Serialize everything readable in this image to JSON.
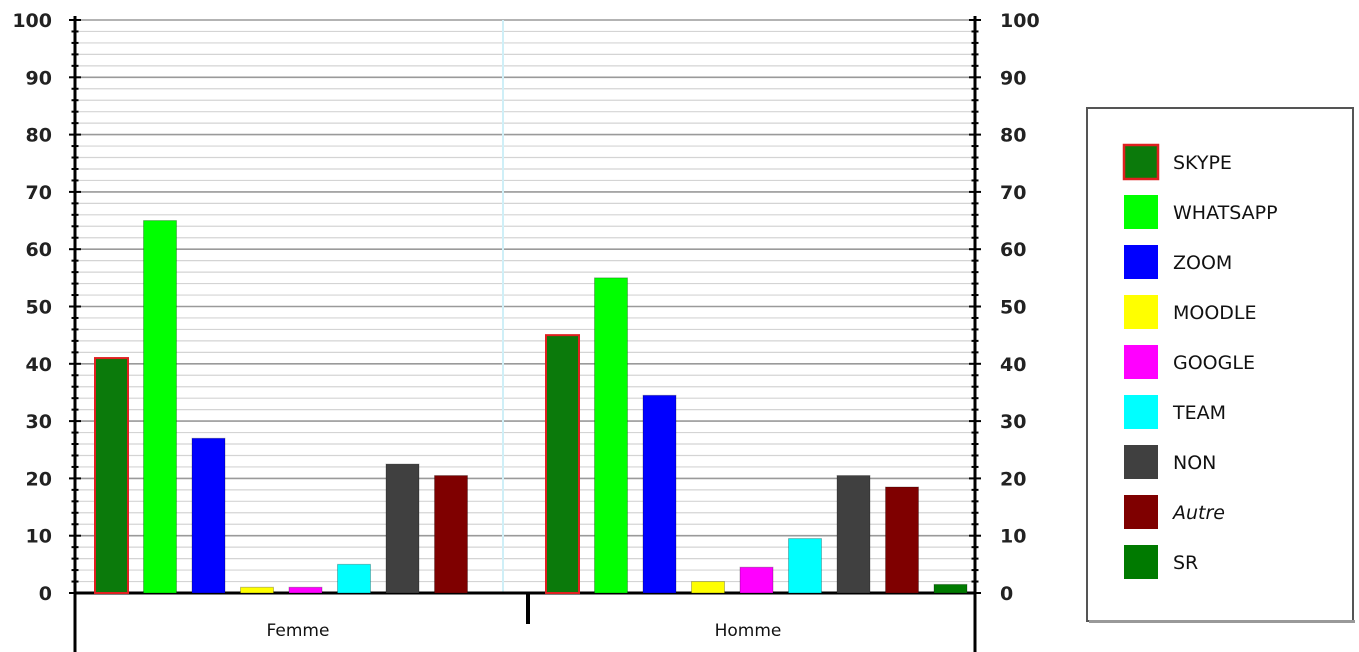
{
  "chart_data": {
    "type": "bar",
    "title": "",
    "xlabel": "",
    "ylabel": "",
    "ylim": [
      0,
      100
    ],
    "y_ticks": [
      "0",
      "10",
      "20",
      "30",
      "40",
      "50",
      "60",
      "70",
      "80",
      "90",
      "100"
    ],
    "grid": true,
    "legend_position": "right",
    "categories": [
      "Femme",
      "Homme"
    ],
    "series": [
      {
        "name": "SKYPE",
        "color": "#0b7a0b",
        "border": "#e02020",
        "values": [
          41,
          45
        ]
      },
      {
        "name": "WHATSAPP",
        "color": "#00ff00",
        "values": [
          65,
          55
        ]
      },
      {
        "name": "ZOOM",
        "color": "#0000ff",
        "values": [
          27,
          34.5
        ]
      },
      {
        "name": "MOODLE",
        "color": "#ffff00",
        "values": [
          1,
          2
        ]
      },
      {
        "name": "GOOGLE",
        "color": "#ff00ff",
        "values": [
          1,
          4.5
        ]
      },
      {
        "name": "TEAM",
        "color": "#00ffff",
        "values": [
          5,
          9.5
        ]
      },
      {
        "name": "NON",
        "color": "#404040",
        "values": [
          22.5,
          20.5
        ]
      },
      {
        "name": "Autre",
        "color": "#7f0000",
        "values": [
          20.5,
          18.5
        ]
      },
      {
        "name": "SR",
        "color": "#007a00",
        "values": [
          0,
          1.5
        ]
      }
    ]
  }
}
